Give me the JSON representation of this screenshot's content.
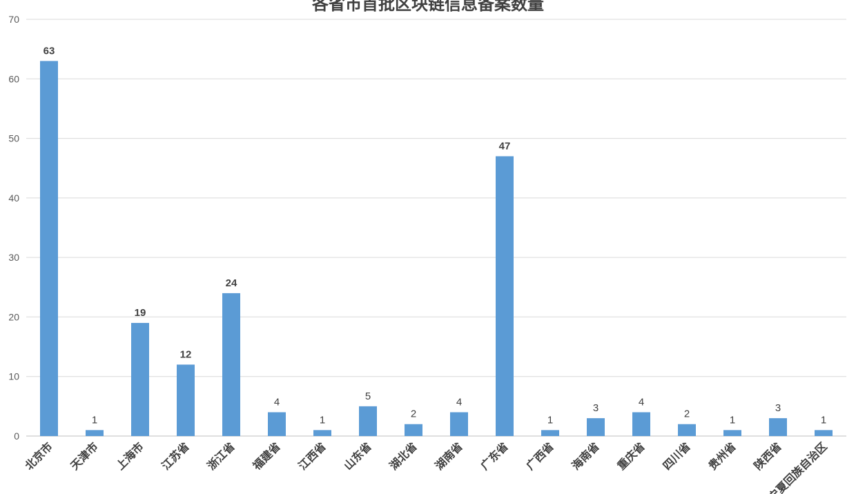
{
  "chart_data": {
    "type": "bar",
    "title": "各省市首批区块链信息备案数量",
    "categories": [
      "北京市",
      "天津市",
      "上海市",
      "江苏省",
      "浙江省",
      "福建省",
      "江西省",
      "山东省",
      "湖北省",
      "湖南省",
      "广东省",
      "广西省",
      "海南省",
      "重庆省",
      "四川省",
      "贵州省",
      "陕西省",
      "宁夏回族自治区"
    ],
    "values": [
      63,
      1,
      19,
      12,
      24,
      4,
      1,
      5,
      2,
      4,
      47,
      1,
      3,
      4,
      2,
      1,
      3,
      1
    ],
    "ylim": [
      0,
      70
    ],
    "yticks": [
      0,
      10,
      20,
      30,
      40,
      50,
      60,
      70
    ],
    "grid": true,
    "bar_color": "#5b9bd5",
    "data_labels": true,
    "bold_labels_threshold": 10
  }
}
